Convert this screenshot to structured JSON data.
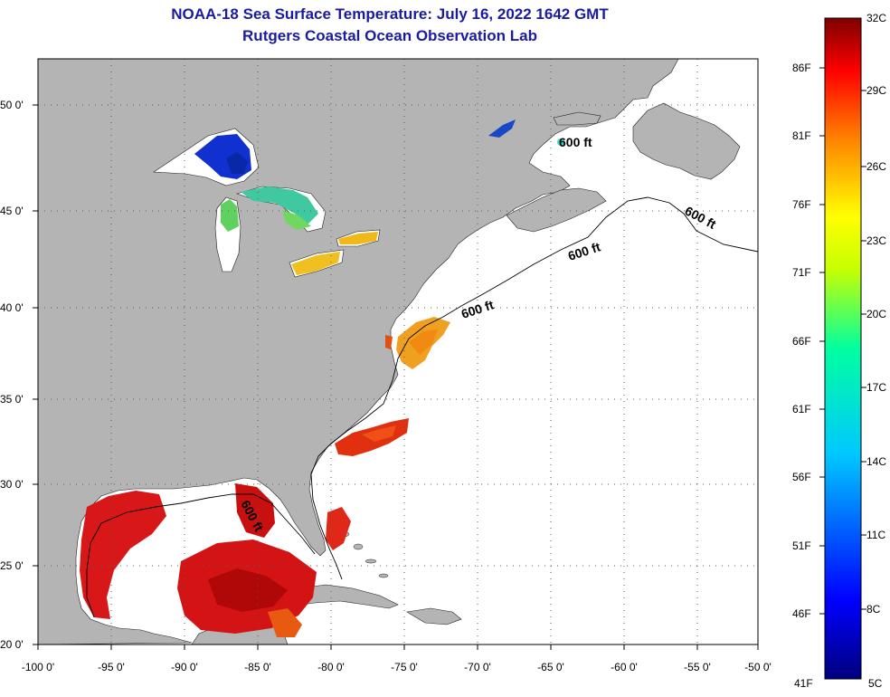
{
  "header": {
    "title": "NOAA-18 Sea Surface Temperature:  July 16, 2022 1642 GMT",
    "subtitle": "Rutgers Coastal Ocean Observation Lab"
  },
  "map": {
    "lon_labels": [
      "-100 0'",
      "-95 0'",
      "-90 0'",
      "-85 0'",
      "-80 0'",
      "-75 0'",
      "-70 0'",
      "-65 0'",
      "-60 0'",
      "-55 0'",
      "-50 0'"
    ],
    "lat_labels": [
      "50 0'",
      "45 0'",
      "40 0'",
      "35 0'",
      "30 0'",
      "25 0'",
      "20 0'"
    ],
    "isobath_label": "600 ft",
    "colors": {
      "land": "#b4b4b4",
      "water": "#ffffff",
      "grid": "#5a5a5a"
    }
  },
  "colorbar": {
    "celsius_labels": [
      "32C",
      "29C",
      "26C",
      "23C",
      "20C",
      "17C",
      "14C",
      "11C",
      "8C",
      "5C"
    ],
    "fahrenheit_labels": [
      "86F",
      "81F",
      "76F",
      "71F",
      "66F",
      "61F",
      "56F",
      "51F",
      "46F",
      "41F"
    ]
  }
}
